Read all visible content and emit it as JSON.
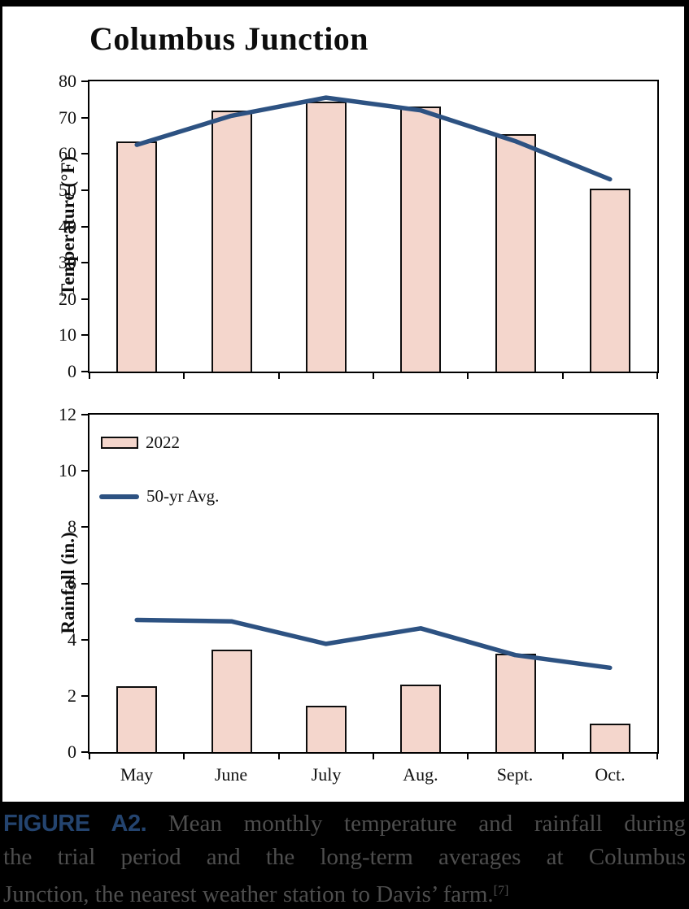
{
  "title": "Columbus Junction",
  "colors": {
    "bar_fill": "#f4d6cc",
    "bar_border": "#0d0d0d",
    "line": "#2d5282",
    "caption_bg": "#000000",
    "caption_label": "#24446f",
    "caption_text": "#4e4e4e"
  },
  "chart_data": [
    {
      "type": "bar+line",
      "title": "Columbus Junction",
      "ylabel": "Temperature (°F)",
      "xlabel": "",
      "ylim": [
        0,
        80
      ],
      "ystep": 10,
      "grid": false,
      "categories": [
        "May",
        "June",
        "July",
        "Aug.",
        "Sept.",
        "Oct."
      ],
      "series": [
        {
          "name": "2022",
          "type": "bar",
          "values": [
            63.5,
            72,
            74.5,
            73,
            65.5,
            50.5
          ]
        },
        {
          "name": "50-yr Avg.",
          "type": "line",
          "values": [
            62.5,
            70.5,
            75.5,
            72,
            63.5,
            53
          ]
        }
      ],
      "legend_position": "none"
    },
    {
      "type": "bar+line",
      "title": "",
      "ylabel": "Rainfall (in.)",
      "xlabel": "",
      "ylim": [
        0,
        12
      ],
      "ystep": 2,
      "grid": false,
      "categories": [
        "May",
        "June",
        "July",
        "Aug.",
        "Sept.",
        "Oct."
      ],
      "series": [
        {
          "name": "2022",
          "type": "bar",
          "values": [
            2.35,
            3.65,
            1.65,
            2.4,
            3.5,
            1.0
          ]
        },
        {
          "name": "50-yr Avg.",
          "type": "line",
          "values": [
            4.7,
            4.65,
            3.85,
            4.4,
            3.45,
            3.0
          ]
        }
      ],
      "legend_position": "top-left"
    }
  ],
  "legend": {
    "bar_label": "2022",
    "line_label": "50-yr Avg."
  },
  "caption": {
    "label": "FIGURE A2.",
    "line1": "Mean monthly temperature and rainfall during",
    "line2": "the trial period and the long-term averages at Columbus",
    "line3": "Junction, the nearest weather station to Davis’ farm.",
    "ref": "[7]"
  }
}
